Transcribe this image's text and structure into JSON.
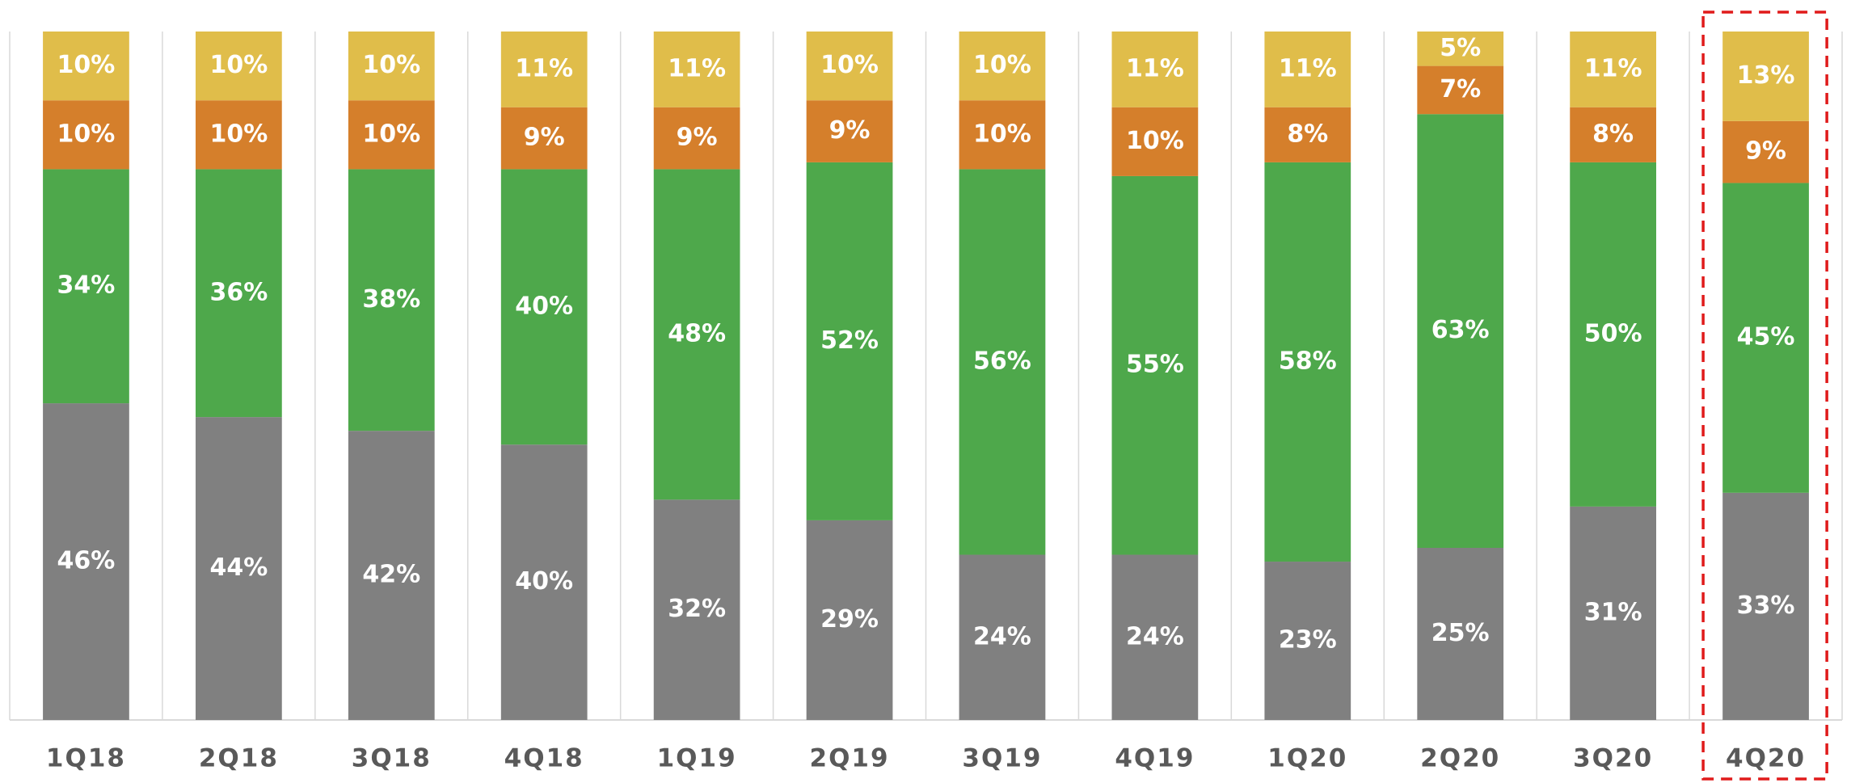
{
  "chart_data": {
    "type": "stacked_bar",
    "categories": [
      "1Q18",
      "2Q18",
      "3Q18",
      "4Q18",
      "1Q19",
      "2Q19",
      "3Q19",
      "4Q19",
      "1Q20",
      "2Q20",
      "3Q20",
      "4Q20"
    ],
    "series": [
      {
        "color": "#808080",
        "values": [
          46,
          44,
          42,
          40,
          32,
          29,
          24,
          24,
          23,
          25,
          31,
          33
        ],
        "value_labels": [
          "46%",
          "44%",
          "42%",
          "40%",
          "32%",
          "29%",
          "24%",
          "24%",
          "23%",
          "25%",
          "31%",
          "33%"
        ]
      },
      {
        "color": "#4ea84b",
        "values": [
          34,
          36,
          38,
          40,
          48,
          52,
          56,
          55,
          58,
          63,
          50,
          45
        ],
        "value_labels": [
          "34%",
          "36%",
          "38%",
          "40%",
          "48%",
          "52%",
          "56%",
          "55%",
          "58%",
          "63%",
          "50%",
          "45%"
        ]
      },
      {
        "color": "#d57f2b",
        "values": [
          10,
          10,
          10,
          9,
          9,
          9,
          10,
          10,
          8,
          7,
          8,
          9
        ],
        "value_labels": [
          "10%",
          "10%",
          "10%",
          "9%",
          "9%",
          "9%",
          "10%",
          "10%",
          "8%",
          "7%",
          "8%",
          "9%"
        ]
      },
      {
        "color": "#e0bd4a",
        "values": [
          10,
          10,
          10,
          11,
          11,
          10,
          10,
          11,
          11,
          5,
          11,
          13
        ],
        "value_labels": [
          "10%",
          "10%",
          "10%",
          "11%",
          "11%",
          "10%",
          "10%",
          "11%",
          "11%",
          "5%",
          "11%",
          "13%"
        ]
      }
    ],
    "ylim": [
      0,
      100
    ],
    "grid": true,
    "highlight": "4Q20"
  }
}
